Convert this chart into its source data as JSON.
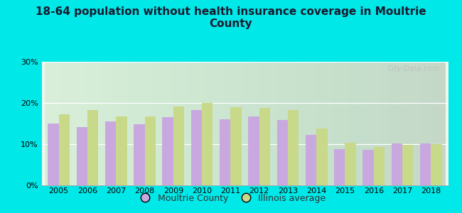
{
  "title": "18-64 population without health insurance coverage in Moultrie\nCounty",
  "years": [
    2005,
    2006,
    2007,
    2008,
    2009,
    2010,
    2011,
    2012,
    2013,
    2014,
    2015,
    2016,
    2017,
    2018
  ],
  "moultrie": [
    15.0,
    14.2,
    15.5,
    14.8,
    16.5,
    18.2,
    16.0,
    16.8,
    15.8,
    12.2,
    8.8,
    8.7,
    10.2,
    10.2
  ],
  "illinois": [
    17.2,
    18.2,
    16.8,
    16.8,
    19.2,
    20.0,
    19.0,
    18.8,
    18.2,
    13.8,
    10.3,
    9.3,
    9.8,
    10.0
  ],
  "moultrie_color": "#c9a8e0",
  "illinois_color": "#c8d98a",
  "background_color": "#00e8e8",
  "ylim": [
    0,
    30
  ],
  "yticks": [
    0,
    10,
    20,
    30
  ],
  "ytick_labels": [
    "0%",
    "10%",
    "20%",
    "30%"
  ],
  "legend_moultrie": "Moultrie County",
  "legend_illinois": "Illinois average",
  "watermark": "City-Data.com",
  "bar_width": 0.38,
  "title_fontsize": 11,
  "tick_fontsize": 8,
  "legend_fontsize": 9
}
